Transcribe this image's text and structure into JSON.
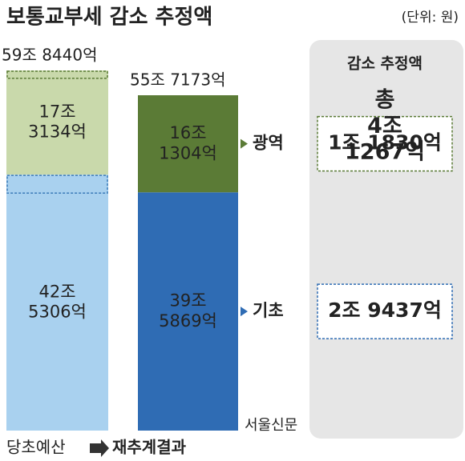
{
  "chart_data": {
    "type": "stacked_bar",
    "title": "보통교부세 감소 추정액",
    "unit": "(단위: 원)",
    "categories": [
      "당초예산",
      "재추계결과"
    ],
    "totals": [
      598440,
      557173
    ],
    "total_labels": [
      "59조 8440억",
      "55조 7173억"
    ],
    "series": [
      {
        "name": "기초",
        "colors": [
          "#a9d1ef",
          "#2f6cb4"
        ],
        "values": [
          425306,
          395869
        ],
        "value_labels": [
          "42조 5306억",
          "39조 5869억"
        ]
      },
      {
        "name": "광역",
        "colors": [
          "#c9d9ab",
          "#5b7b36"
        ],
        "values": [
          173134,
          161304
        ],
        "value_labels": [
          "17조 3134억",
          "16조 1304억"
        ]
      }
    ],
    "reduction": {
      "title": "감소 추정액",
      "total": 41267,
      "total_label": "총 4조 1267억",
      "values": [
        29437,
        11830
      ],
      "value_labels": [
        "2조 9437억",
        "1조 1830억"
      ]
    },
    "watermark": "서울신문"
  }
}
